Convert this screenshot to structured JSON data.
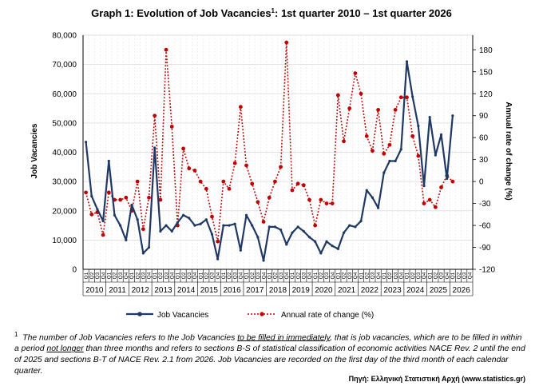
{
  "title_main": "Graph 1: Evolution of Job Vacancies",
  "title_sup": "1",
  "title_rest": ": 1st quarter 2010 – 1st quarter 2026",
  "chart_data": {
    "type": "line",
    "title": "Graph 1: Evolution of Job Vacancies1: 1st quarter 2010 – 1st quarter 2026",
    "ylabel": "Job Vacancies",
    "ylabel_right": "Annual rate of change  (%)",
    "ylim": [
      0,
      80000
    ],
    "ylim_right": [
      -120,
      200
    ],
    "y_ticks": [
      "0",
      "10,000",
      "20,000",
      "30,000",
      "40,000",
      "50,000",
      "60,000",
      "70,000",
      "80,000"
    ],
    "y_ticks_right": [
      "-120",
      "-90",
      "-60",
      "-30",
      "0",
      "30",
      "60",
      "90",
      "120",
      "150",
      "180"
    ],
    "quarter_labels": [
      "Q1",
      "Q2",
      "Q3",
      "Q4"
    ],
    "years": [
      "2010",
      "2011",
      "2012",
      "2013",
      "2014",
      "2015",
      "2016",
      "2017",
      "2018",
      "2019",
      "2020",
      "2021",
      "2022",
      "2023",
      "2024",
      "2025",
      "2026"
    ],
    "grid": true,
    "legend_position": "bottom",
    "series": [
      {
        "name": "Job Vacancies",
        "axis": "left",
        "color": "#1f3864",
        "values": [
          43500,
          25000,
          20500,
          16500,
          37000,
          18500,
          15000,
          10000,
          22000,
          17000,
          5500,
          7500,
          41500,
          13000,
          15000,
          13000,
          16000,
          18500,
          17500,
          15000,
          15500,
          17000,
          12000,
          3500,
          15000,
          15000,
          15500,
          6500,
          18500,
          15000,
          11000,
          3000,
          14500,
          14500,
          13500,
          8500,
          12500,
          14500,
          13000,
          11000,
          9500,
          5500,
          9500,
          8000,
          7000,
          12500,
          15000,
          14500,
          16500,
          27000,
          24500,
          21000,
          33000,
          37000,
          37000,
          41000,
          71000,
          59000,
          49000,
          28500,
          52000,
          39000,
          46000,
          31000,
          52500
        ]
      },
      {
        "name": "Annual rate of change  (%)",
        "axis": "right",
        "color": "#c00000",
        "values": [
          -15,
          -45,
          -42,
          -73,
          -15,
          -25,
          -25,
          -22,
          -40,
          0,
          -65,
          -22,
          90,
          -25,
          180,
          75,
          -60,
          45,
          18,
          15,
          0,
          -10,
          -48,
          -82,
          0,
          -10,
          25,
          102,
          22,
          -3,
          -28,
          -55,
          -22,
          0,
          20,
          190,
          -12,
          -3,
          -5,
          -25,
          -60,
          -25,
          -30,
          -30,
          118,
          55,
          100,
          148,
          120,
          62,
          42,
          98,
          38,
          50,
          98,
          115,
          115,
          62,
          35,
          -30,
          -25,
          -35,
          -8,
          8,
          0
        ]
      }
    ]
  },
  "legend": {
    "job_vacancies": "Job Vacancies",
    "annual_rate": "Annual rate of change  (%)"
  },
  "footnote": {
    "sup": "1",
    "part1": "The number of Job Vacancies refers to the Job Vacancies ",
    "u1": "to be filled in immediately",
    "part2": ", that is job vacancies, which are to be filled in within a period ",
    "u2": "not longer",
    "part3": " than three months and refers to sections B-S of statistical classification of economic activities NACE Rev. 2 until the end of 2025 and sections B-T of NACE Rev. 2.1 from 2026. Job Vacancies are recorded on the first day of the third month of each calendar quarter."
  },
  "source": "Πηγή: Ελληνική Στατιστική Αρχή (www.statistics.gr)"
}
